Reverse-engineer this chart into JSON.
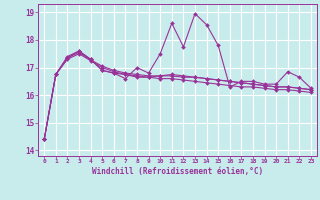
{
  "title": "",
  "xlabel": "Windchill (Refroidissement éolien,°C)",
  "ylabel": "",
  "background_color": "#c8ecec",
  "grid_color": "#ffffff",
  "line_color": "#993399",
  "xlim": [
    -0.5,
    23.5
  ],
  "ylim": [
    13.8,
    19.3
  ],
  "yticks": [
    14,
    15,
    16,
    17,
    18,
    19
  ],
  "xtick_labels": [
    "0",
    "1",
    "2",
    "3",
    "4",
    "5",
    "6",
    "7",
    "8",
    "9",
    "10",
    "11",
    "12",
    "13",
    "14",
    "15",
    "16",
    "17",
    "18",
    "19",
    "20",
    "21",
    "22",
    "23"
  ],
  "series": [
    [
      14.4,
      16.75,
      17.35,
      17.6,
      17.3,
      16.9,
      16.8,
      16.6,
      17.0,
      16.8,
      17.5,
      18.6,
      17.75,
      18.95,
      18.55,
      17.8,
      16.3,
      16.5,
      16.5,
      16.4,
      16.4,
      16.85,
      16.65,
      16.25
    ],
    [
      14.4,
      16.75,
      17.3,
      17.5,
      17.25,
      17.0,
      16.85,
      16.75,
      16.65,
      16.65,
      16.7,
      16.75,
      16.7,
      16.65,
      16.6,
      16.55,
      16.5,
      16.45,
      16.4,
      16.35,
      16.3,
      16.3,
      16.25,
      16.2
    ],
    [
      14.4,
      16.75,
      17.35,
      17.55,
      17.28,
      17.05,
      16.9,
      16.8,
      16.75,
      16.7,
      16.7,
      16.7,
      16.65,
      16.65,
      16.6,
      16.55,
      16.5,
      16.45,
      16.4,
      16.35,
      16.3,
      16.3,
      16.25,
      16.2
    ],
    [
      14.4,
      16.75,
      17.4,
      17.6,
      17.3,
      16.9,
      16.8,
      16.75,
      16.7,
      16.65,
      16.6,
      16.6,
      16.55,
      16.5,
      16.45,
      16.4,
      16.35,
      16.3,
      16.3,
      16.25,
      16.2,
      16.2,
      16.15,
      16.1
    ]
  ]
}
